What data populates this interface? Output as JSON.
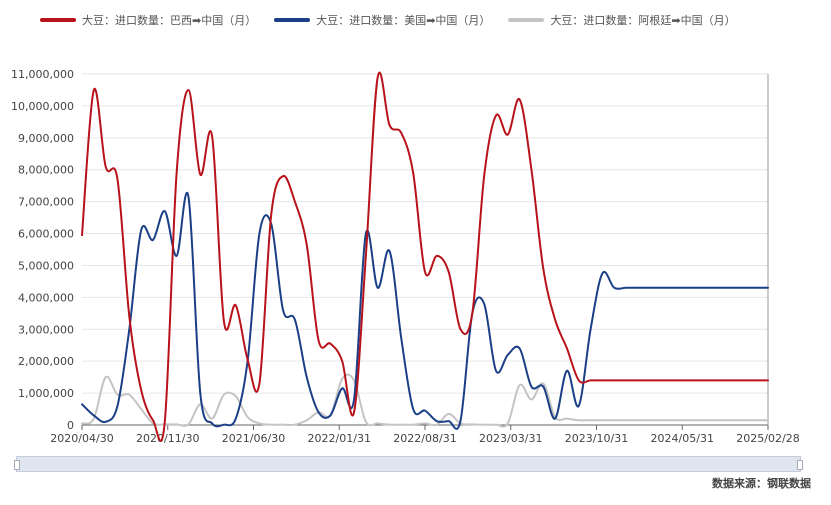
{
  "legend": {
    "items": [
      {
        "label": "大豆：进口数量：巴西➡中国（月）",
        "color": "#b8121a"
      },
      {
        "label": "大豆：进口数量：美国➡中国（月）",
        "color": "#1b3f86"
      },
      {
        "label": "大豆：进口数量：阿根廷➡中国（月）",
        "color": "#c4c4c4"
      }
    ]
  },
  "source": "数据来源：钢联数据",
  "chart_data": {
    "type": "line",
    "ylim": [
      0,
      11000000
    ],
    "yticks": [
      0,
      1000000,
      2000000,
      3000000,
      4000000,
      5000000,
      6000000,
      7000000,
      8000000,
      9000000,
      10000000,
      11000000
    ],
    "ytick_labels": [
      "0",
      "1,000,000",
      "2,000,000",
      "3,000,000",
      "4,000,000",
      "5,000,000",
      "6,000,000",
      "7,000,000",
      "8,000,000",
      "9,000,000",
      "10,000,000",
      "11,000,000"
    ],
    "x": [
      "2020-04",
      "2020-05",
      "2020-06",
      "2020-07",
      "2020-08",
      "2020-09",
      "2020-10",
      "2020-11",
      "2020-12",
      "2021-01",
      "2021-02",
      "2021-03",
      "2021-04",
      "2021-05",
      "2021-06",
      "2021-07",
      "2021-08",
      "2021-09",
      "2021-10",
      "2021-11",
      "2021-12",
      "2022-01",
      "2022-02",
      "2022-03",
      "2022-04",
      "2022-05",
      "2022-06",
      "2022-07",
      "2022-08",
      "2022-09",
      "2022-10",
      "2022-11",
      "2022-12",
      "2023-01",
      "2023-02",
      "2023-03",
      "2023-04",
      "2023-05",
      "2023-06",
      "2023-07",
      "2023-08",
      "2023-09",
      "2023-10",
      "2023-11",
      "2023-12",
      "2024-01",
      "2024-02",
      "2024-03",
      "2024-04",
      "2024-05",
      "2024-06",
      "2024-07",
      "2024-08",
      "2024-09",
      "2024-10",
      "2024-11",
      "2024-12",
      "2025-01",
      "2025-02"
    ],
    "xtick_labels": [
      "2020/04/30",
      "2020/11/30",
      "2021/06/30",
      "2022/01/31",
      "2022/08/31",
      "2023/03/31",
      "2023/10/31",
      "2024/05/31",
      "2025/02/28"
    ],
    "series": [
      {
        "name": "大豆：进口数量：巴西➡中国（月）",
        "color": "#b8121a",
        "values": [
          5950000,
          10500000,
          8100000,
          7700000,
          3400000,
          1100000,
          150000,
          100000,
          7900000,
          10500000,
          7850000,
          9050000,
          3250000,
          3750000,
          2050000,
          1300000,
          6600000,
          7800000,
          7000000,
          5650000,
          2650000,
          2550000,
          2000000,
          400000,
          5300000,
          10900000,
          9400000,
          9150000,
          7900000,
          4800000,
          5300000,
          4800000,
          3000000,
          3500000,
          7800000,
          9700000,
          9100000,
          10200000,
          8000000,
          4900000,
          3300000,
          2400000,
          1400000,
          1400000,
          1400000,
          1400000,
          1400000,
          1400000,
          1400000,
          1400000,
          1400000,
          1400000,
          1400000,
          1400000,
          1400000,
          1400000,
          1400000,
          1400000,
          1400000
        ]
      },
      {
        "name": "大豆：进口数量：美国➡中国（月）",
        "color": "#1b3f86",
        "values": [
          650000,
          300000,
          100000,
          600000,
          3000000,
          6100000,
          5800000,
          6700000,
          5300000,
          7150000,
          1000000,
          50000,
          10000,
          200000,
          2000000,
          6000000,
          6300000,
          3600000,
          3300000,
          1500000,
          400000,
          300000,
          1150000,
          800000,
          6000000,
          4300000,
          5450000,
          2700000,
          500000,
          450000,
          120000,
          120000,
          130000,
          3500000,
          3800000,
          1700000,
          2200000,
          2400000,
          1200000,
          1200000,
          200000,
          1700000,
          600000,
          3000000,
          4750000,
          4300000,
          4300000,
          4300000,
          4300000,
          4300000,
          4300000,
          4300000,
          4300000,
          4300000,
          4300000,
          4300000,
          4300000,
          4300000,
          4300000
        ]
      },
      {
        "name": "大豆：进口数量：阿根廷➡中国（月）",
        "color": "#c4c4c4",
        "values": [
          50000,
          200000,
          1500000,
          950000,
          950000,
          500000,
          50000,
          20000,
          20000,
          20000,
          650000,
          200000,
          950000,
          900000,
          250000,
          50000,
          10000,
          10000,
          10000,
          150000,
          400000,
          300000,
          1450000,
          1400000,
          100000,
          50000,
          10000,
          10000,
          10000,
          50000,
          10000,
          350000,
          50000,
          20000,
          10000,
          10000,
          50000,
          1250000,
          800000,
          1300000,
          250000,
          200000,
          150000,
          150000,
          150000,
          150000,
          150000,
          150000,
          150000,
          150000,
          150000,
          150000,
          150000,
          150000,
          150000,
          150000,
          150000,
          150000,
          150000
        ]
      }
    ]
  }
}
